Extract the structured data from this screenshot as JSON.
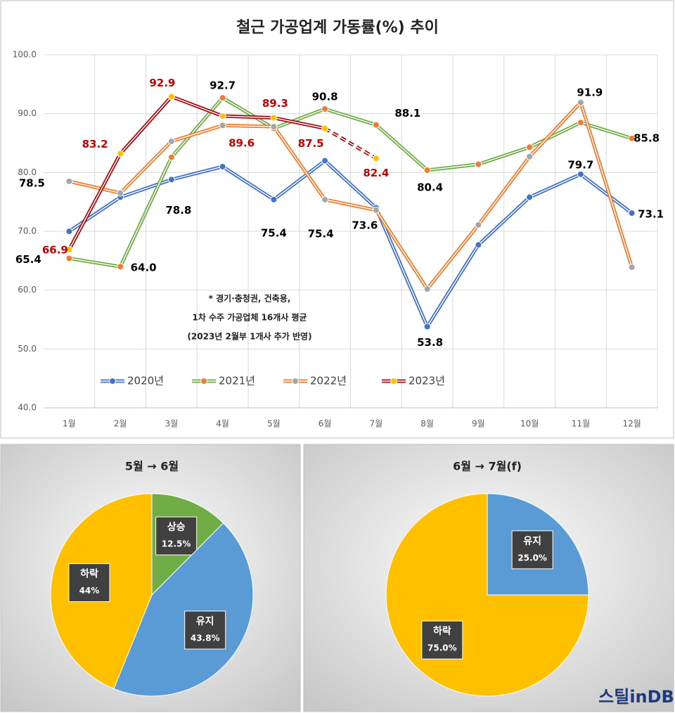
{
  "chart_data": [
    {
      "type": "line",
      "title": "철근 가공업계 가동률(%) 추이",
      "categories": [
        "1월",
        "2월",
        "3월",
        "4월",
        "5월",
        "6월",
        "7월",
        "8월",
        "9월",
        "10월",
        "11월",
        "12월"
      ],
      "ylim": [
        40,
        100
      ],
      "yticks": [
        {
          "value": 40,
          "label": "40.0"
        },
        {
          "value": 50,
          "label": "50.0"
        },
        {
          "value": 60,
          "label": "60.0"
        },
        {
          "value": 70,
          "label": "70.0"
        },
        {
          "value": 80,
          "label": "80.0"
        },
        {
          "value": 90,
          "label": "90.0"
        },
        {
          "value": 100,
          "label": "100.0"
        }
      ],
      "grid": true,
      "series": [
        {
          "name": "2020년",
          "color": "#4472c4",
          "line_color": "#4472c4",
          "label_color": "#000000",
          "values": [
            70.0,
            75.8,
            78.8,
            81.0,
            75.4,
            82.0,
            74.0,
            53.8,
            67.7,
            75.8,
            79.7,
            73.1
          ],
          "value_labels": [
            null,
            null,
            "78.8",
            null,
            "75.4",
            null,
            null,
            "53.8",
            null,
            null,
            "79.7",
            "73.1"
          ]
        },
        {
          "name": "2021년",
          "color": "#ed7d31",
          "line_color": "#70ad47",
          "label_color": "#000000",
          "values": [
            65.4,
            64.0,
            82.6,
            92.7,
            87.5,
            90.8,
            88.1,
            80.4,
            81.4,
            84.3,
            88.5,
            85.8
          ],
          "value_labels": [
            "65.4",
            "64.0",
            null,
            "92.7",
            null,
            "90.8",
            "88.1",
            "80.4",
            null,
            null,
            null,
            "85.8"
          ]
        },
        {
          "name": "2022년",
          "color": "#a5a5a5",
          "line_color": "#ed7d31",
          "label_color": "#000000",
          "values": [
            78.5,
            76.5,
            85.3,
            88.0,
            87.8,
            75.4,
            73.6,
            60.2,
            71.1,
            82.7,
            91.9,
            63.9
          ],
          "value_labels": [
            "78.5",
            null,
            null,
            null,
            null,
            "75.4",
            "73.6",
            null,
            null,
            null,
            "91.9",
            null
          ]
        },
        {
          "name": "2023년",
          "color": "#ffc000",
          "line_color": "#a50f15",
          "label_color": "#c00000",
          "dashed_from": 5,
          "values": [
            66.9,
            83.2,
            92.9,
            89.6,
            89.3,
            87.5,
            82.4,
            null,
            null,
            null,
            null,
            null
          ],
          "value_labels": [
            "66.9",
            "83.2",
            "92.9",
            "89.6",
            "89.3",
            "87.5",
            "82.4",
            null,
            null,
            null,
            null,
            null
          ]
        }
      ],
      "annotation": [
        "* 경기·충청권, 건축용,",
        "1차 수주 가공업체 16개사 평균",
        "(2023년 2월부 1개사 추가 반영)"
      ]
    },
    {
      "type": "pie",
      "title": "5월 → 6월",
      "categories": [
        "상승",
        "유지",
        "하락"
      ],
      "values": [
        12.5,
        43.8,
        44
      ],
      "value_labels": [
        "12.5%",
        "43.8%",
        "44%"
      ],
      "colors": [
        "#70ad47",
        "#5b9bd5",
        "#ffc000"
      ]
    },
    {
      "type": "pie",
      "title": "6월 → 7월(f)",
      "categories": [
        "유지",
        "하락"
      ],
      "values": [
        25.0,
        75.0
      ],
      "value_labels": [
        "25.0%",
        "75.0%"
      ],
      "colors": [
        "#5b9bd5",
        "#ffc000"
      ]
    }
  ],
  "logo": "스틸inDB"
}
